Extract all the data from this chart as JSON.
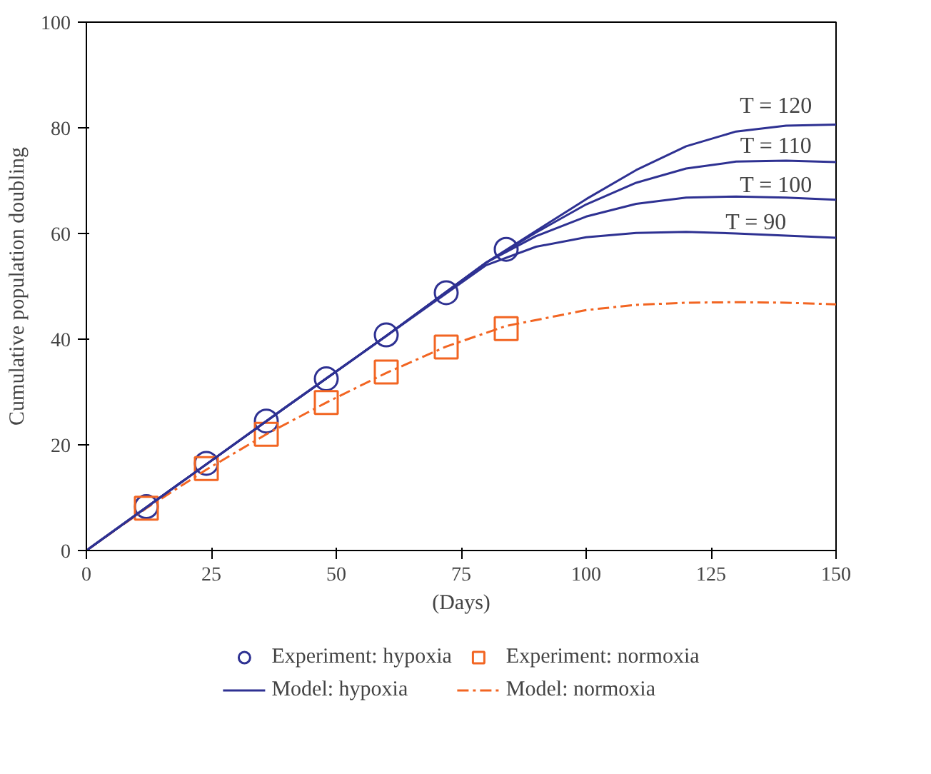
{
  "chart_data": {
    "type": "line",
    "xlabel": "(Days)",
    "ylabel": "Cumulative population doubling",
    "xlim": [
      0,
      150
    ],
    "ylim": [
      0,
      100
    ],
    "xticks": [
      0,
      25,
      50,
      75,
      100,
      125,
      150
    ],
    "yticks": [
      0,
      20,
      40,
      60,
      80,
      100
    ],
    "grid": false,
    "legend": "bottom",
    "series": [
      {
        "name": "Experiment: hypoxia",
        "type": "scatter",
        "marker": "circle",
        "color": "#2e3192",
        "x": [
          12,
          24,
          36,
          48,
          60,
          72,
          84
        ],
        "values": [
          8.3,
          16.5,
          24.5,
          32.5,
          40.8,
          48.8,
          57
        ]
      },
      {
        "name": "Model: hypoxia",
        "type": "line",
        "line_style": "solid",
        "color": "#2e3192",
        "x": [
          0,
          20,
          40,
          60,
          80,
          90,
          100,
          110,
          120,
          130,
          140,
          150
        ],
        "values": [
          0,
          13.6,
          27.2,
          40.6,
          54.5,
          60.5,
          66.5,
          72,
          76.5,
          79.3,
          80.4,
          80.6
        ]
      },
      {
        "name": "Experiment: normoxia",
        "type": "scatter",
        "marker": "square",
        "color": "#f26522",
        "x": [
          12,
          24,
          36,
          48,
          60,
          72,
          84
        ],
        "values": [
          8,
          15.5,
          22,
          28,
          33.8,
          38.5,
          42
        ]
      },
      {
        "name": "Model: normoxia",
        "type": "line",
        "line_style": "dashed",
        "color": "#f26522",
        "x": [
          0,
          12,
          24,
          36,
          48,
          60,
          72,
          84,
          100,
          110,
          120,
          130,
          140,
          150
        ],
        "values": [
          0,
          8,
          15.3,
          22,
          28,
          33.6,
          38.6,
          42.5,
          45.5,
          46.5,
          46.9,
          47,
          46.9,
          46.6
        ]
      },
      {
        "type": "line",
        "line_style": "solid",
        "color": "#2e3192",
        "x": [
          0,
          20,
          40,
          60,
          80,
          90,
          100,
          110,
          120,
          130,
          140,
          150
        ],
        "values": [
          0,
          13.6,
          27.2,
          40.6,
          54.5,
          60.2,
          65.5,
          69.6,
          72.3,
          73.6,
          73.8,
          73.5
        ]
      },
      {
        "type": "line",
        "line_style": "solid",
        "color": "#2e3192",
        "x": [
          0,
          20,
          40,
          60,
          80,
          90,
          100,
          110,
          120,
          130,
          140,
          150
        ],
        "values": [
          0,
          13.6,
          27.2,
          40.6,
          54.5,
          59.5,
          63.2,
          65.6,
          66.8,
          67,
          66.8,
          66.4
        ]
      },
      {
        "type": "line",
        "line_style": "solid",
        "color": "#2e3192",
        "x": [
          0,
          20,
          40,
          60,
          80,
          90,
          100,
          110,
          120,
          130,
          140,
          150
        ],
        "values": [
          0,
          13.6,
          27.2,
          40.6,
          54,
          57.5,
          59.3,
          60.1,
          60.3,
          60,
          59.6,
          59.2
        ]
      }
    ],
    "annotations": [
      "T = 120",
      "T = 110",
      "T = 100",
      "T = 90"
    ]
  }
}
